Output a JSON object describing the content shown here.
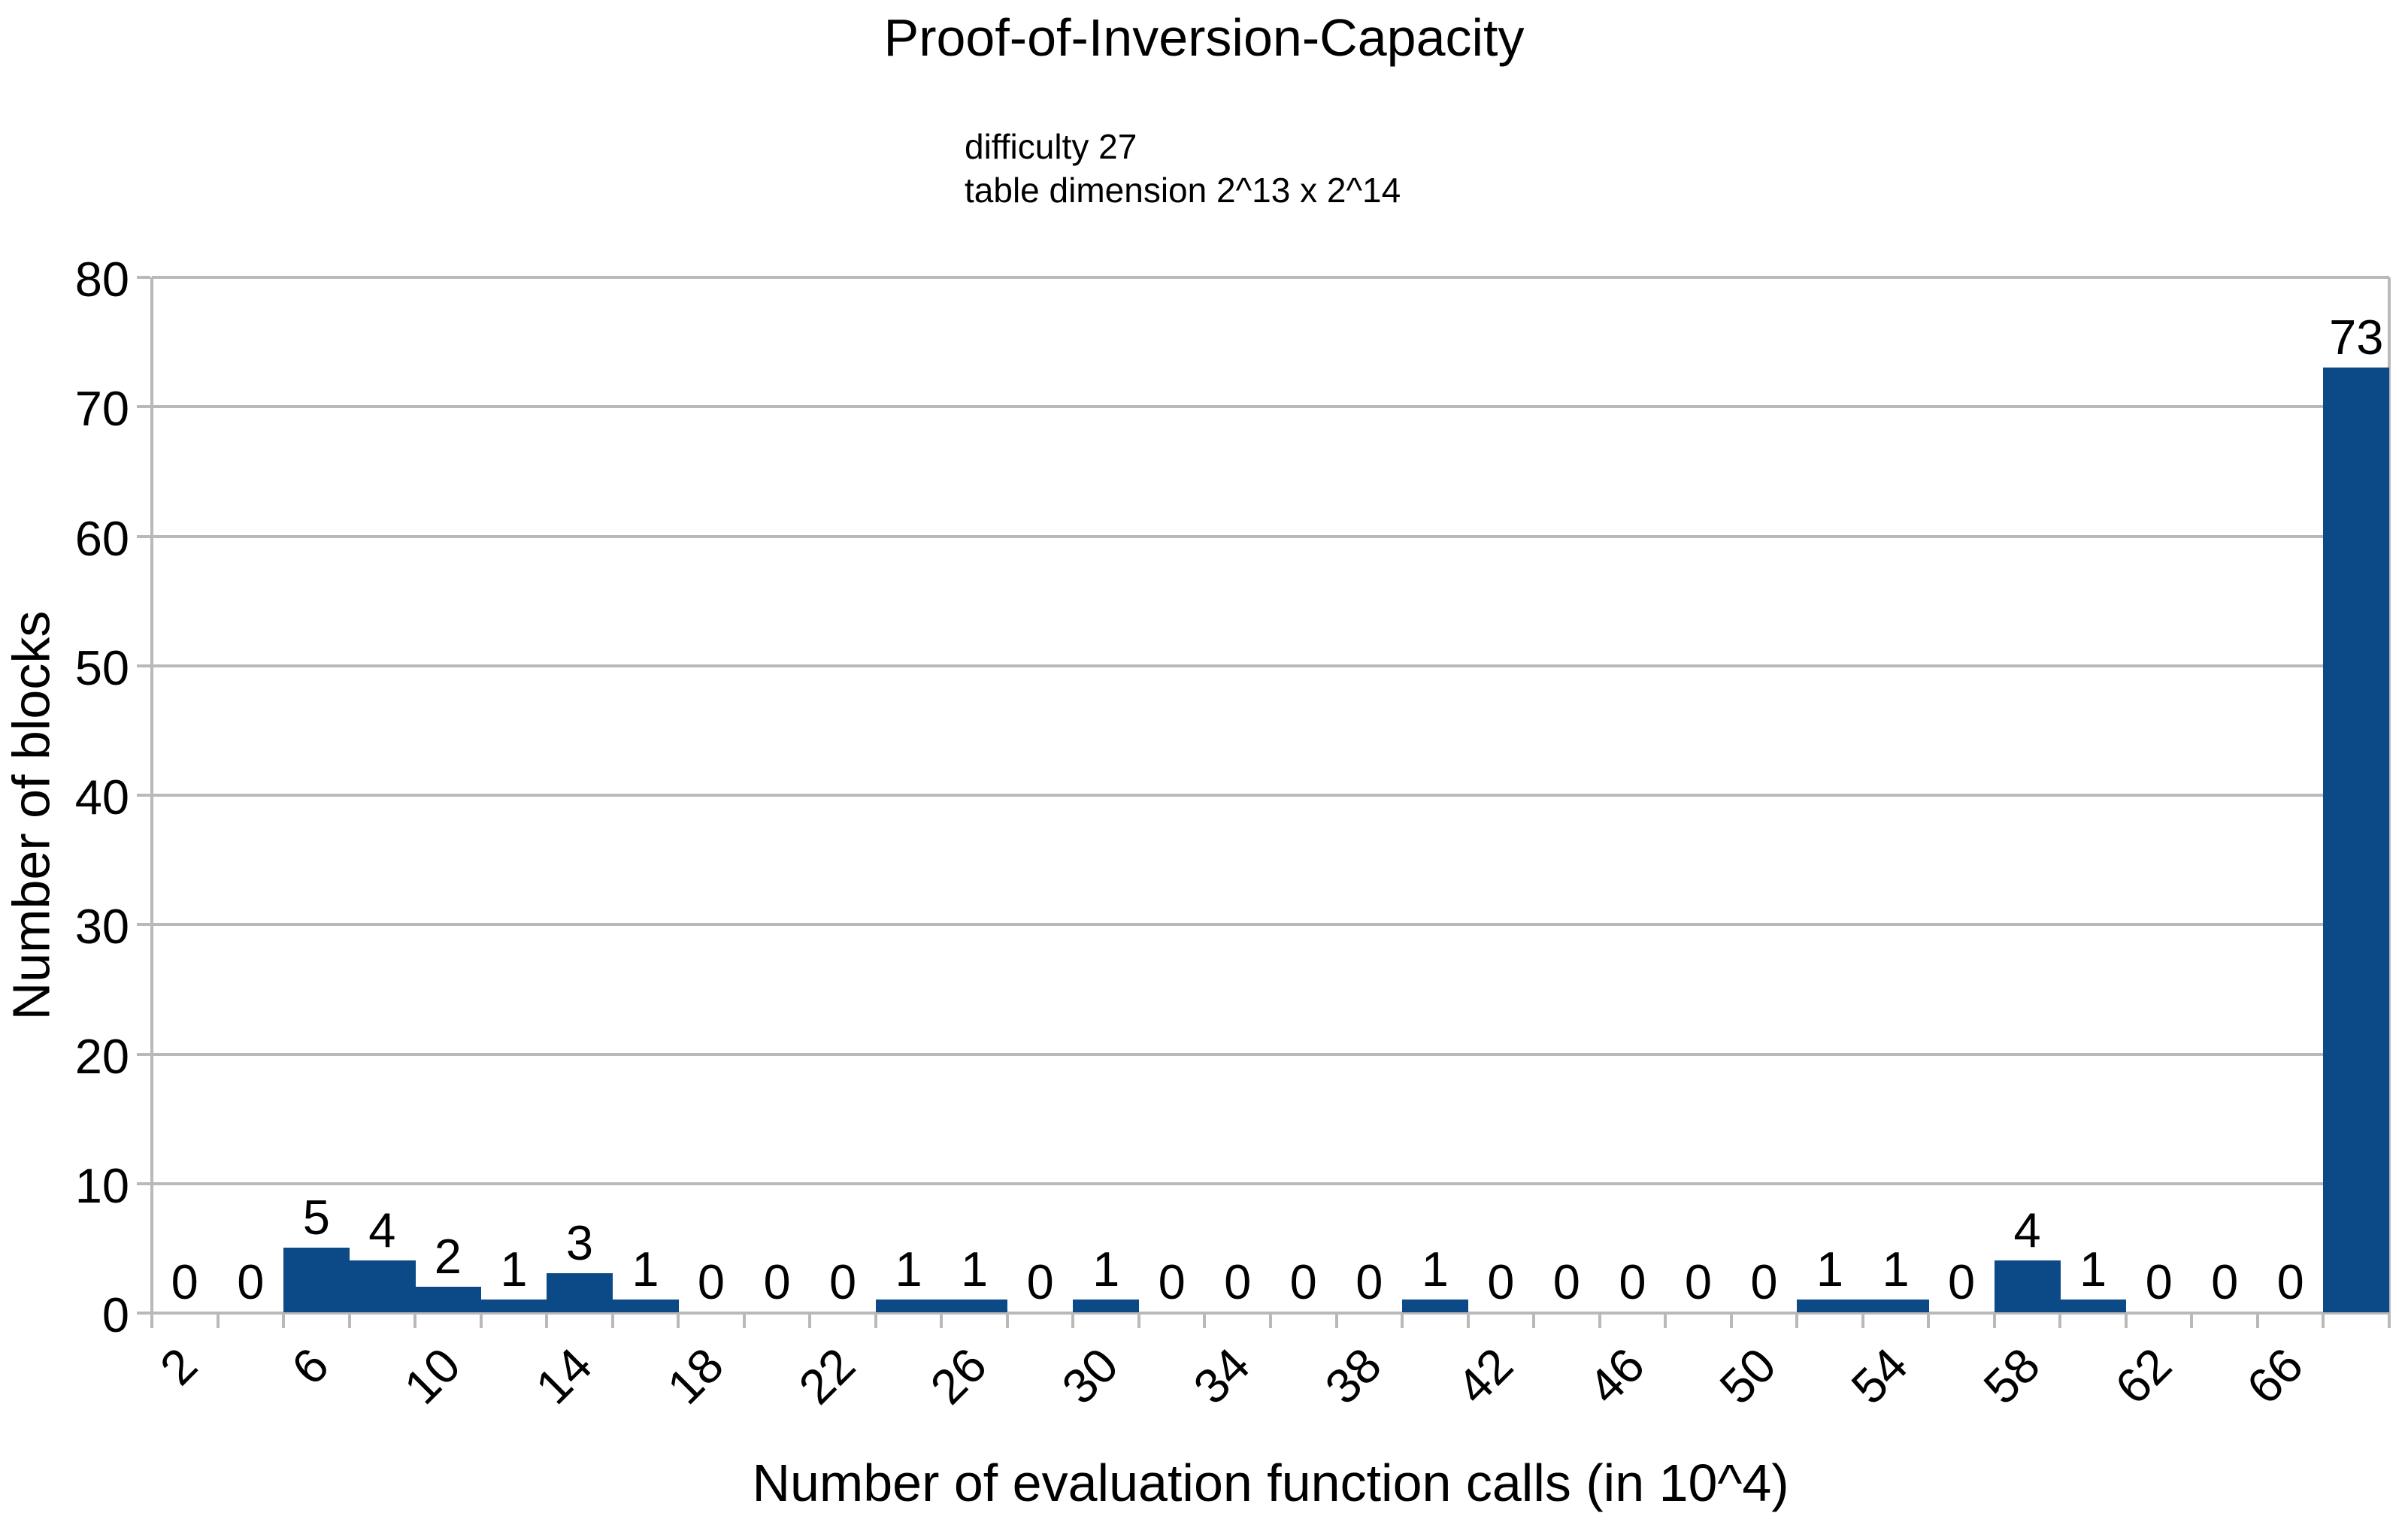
{
  "chart": {
    "title": "Proof-of-Inversion-Capacity",
    "subtitle_line1": "difficulty 27",
    "subtitle_line2": "table dimension 2^13 x 2^14"
  },
  "chart_data": {
    "type": "bar",
    "title": "Proof-of-Inversion-Capacity",
    "subtitle": [
      "difficulty 27",
      "table dimension 2^13 x 2^14"
    ],
    "xlabel": "Number of evaluation function calls (in 10^4)",
    "ylabel": "Number of blocks",
    "bin_start": 2,
    "bin_width": 2,
    "bin_count": 34,
    "x_tick_labels": [
      "2",
      "6",
      "10",
      "14",
      "18",
      "22",
      "26",
      "30",
      "34",
      "38",
      "42",
      "46",
      "50",
      "54",
      "58",
      "62",
      "66"
    ],
    "x_label_every_nth_edge": 2,
    "y_ticks": [
      0,
      10,
      20,
      30,
      40,
      50,
      60,
      70,
      80
    ],
    "ylim": [
      0,
      80
    ],
    "grid": true,
    "legend": false,
    "values": [
      0,
      0,
      5,
      4,
      2,
      1,
      3,
      1,
      0,
      0,
      0,
      1,
      1,
      0,
      1,
      0,
      0,
      0,
      0,
      1,
      0,
      0,
      0,
      0,
      0,
      1,
      1,
      0,
      4,
      1,
      0,
      0,
      0,
      73
    ],
    "data_labels_shown": true,
    "bar_color": "#0b4a86",
    "grid_color": "#b9b9b9",
    "text_color": "#000000",
    "background_color": "#ffffff"
  }
}
